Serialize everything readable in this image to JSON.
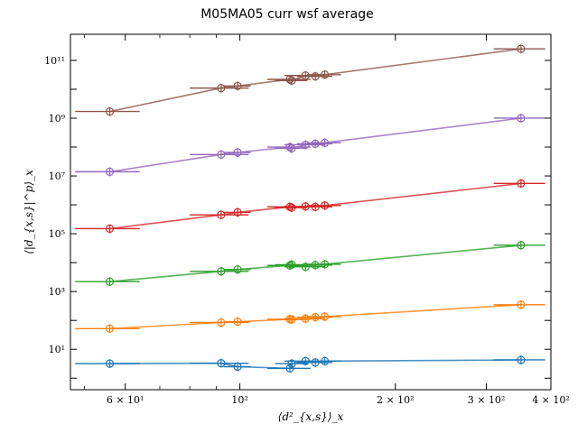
{
  "chart_data": {
    "type": "scatter",
    "title": "M05MA05 curr wsf average",
    "xlabel": "⟨d²_{x,s}⟩_x",
    "ylabel": "⟨|d_{x,s}|^p⟩_x",
    "x_scale": "log",
    "y_scale": "log",
    "xlim": [
      47,
      400
    ],
    "ylim": [
      0.4,
      800000000000.0
    ],
    "grid": false,
    "legend": "none",
    "x_ticks": [
      {
        "value": 60,
        "label": "6 × 10¹"
      },
      {
        "value": 100,
        "label": "10²"
      },
      {
        "value": 200,
        "label": "2 × 10²"
      },
      {
        "value": 300,
        "label": "3 × 10²"
      },
      {
        "value": 400,
        "label": "4 × 10²"
      }
    ],
    "y_ticks": [
      {
        "value": 10,
        "label": "10¹"
      },
      {
        "value": 1000,
        "label": "10³"
      },
      {
        "value": 100000,
        "label": "10⁵"
      },
      {
        "value": 10000000,
        "label": "10⁷"
      },
      {
        "value": 1000000000,
        "label": "10⁹"
      },
      {
        "value": 100000000000,
        "label": "10¹¹"
      }
    ],
    "x": [
      56,
      92,
      99,
      125,
      126,
      134,
      140,
      146,
      350
    ],
    "xerr": [
      8,
      12,
      6,
      12,
      9,
      12,
      11,
      11,
      40
    ],
    "series": [
      {
        "color": "#1f77b4",
        "values": [
          3.2,
          3.3,
          2.5,
          2.2,
          3.2,
          3.9,
          3.5,
          3.9,
          4.3
        ]
      },
      {
        "color": "#ff7f0e",
        "values": [
          52,
          85,
          90,
          110,
          108,
          115,
          130,
          135,
          350
        ]
      },
      {
        "color": "#2ca02c",
        "values": [
          2200,
          5000,
          5800,
          8000,
          8500,
          7200,
          8200,
          8800,
          40000
        ]
      },
      {
        "color": "#d62728",
        "values": [
          150000,
          450000,
          550000,
          850000,
          800000,
          880000,
          850000,
          950000,
          5500000
        ]
      },
      {
        "color": "#9467bd",
        "values": [
          14000000,
          55000000,
          65000000,
          100000000,
          90000000,
          120000000,
          130000000,
          140000000,
          1000000000
        ]
      },
      {
        "color": "#8c564b",
        "values": [
          1700000000,
          11000000000,
          13000000000,
          22000000000,
          20000000000,
          30000000000,
          28000000000,
          32000000000,
          250000000000
        ]
      }
    ]
  }
}
